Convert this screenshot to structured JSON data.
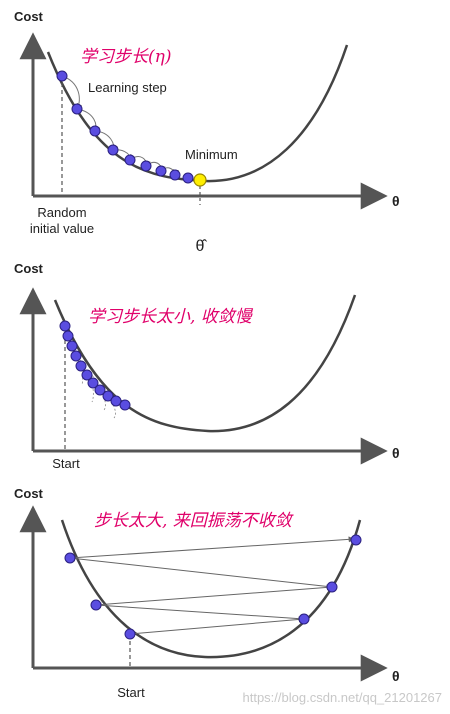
{
  "panels": [
    {
      "y_label": "Cost",
      "x_label": "θ",
      "handwritten_note": "学习步长(η)",
      "annotations": [
        "Learning step",
        "Minimum"
      ],
      "start_label_lines": [
        "Random",
        "initial value"
      ],
      "optimum_label": "θ̂"
    },
    {
      "y_label": "Cost",
      "x_label": "θ",
      "handwritten_note": "学习步长太小, 收敛慢",
      "start_label": "Start"
    },
    {
      "y_label": "Cost",
      "x_label": "θ",
      "handwritten_note": "步长太大, 来回振荡不收敛",
      "start_label": "Start"
    }
  ],
  "watermark": "https://blog.csdn.net/qq_21201267",
  "colors": {
    "point_fill": "#5a4de0",
    "point_stroke": "#2a2080",
    "minimum_fill": "#ffee00",
    "curve": "#444444",
    "axis": "#555555",
    "note": "#e0006a"
  }
}
